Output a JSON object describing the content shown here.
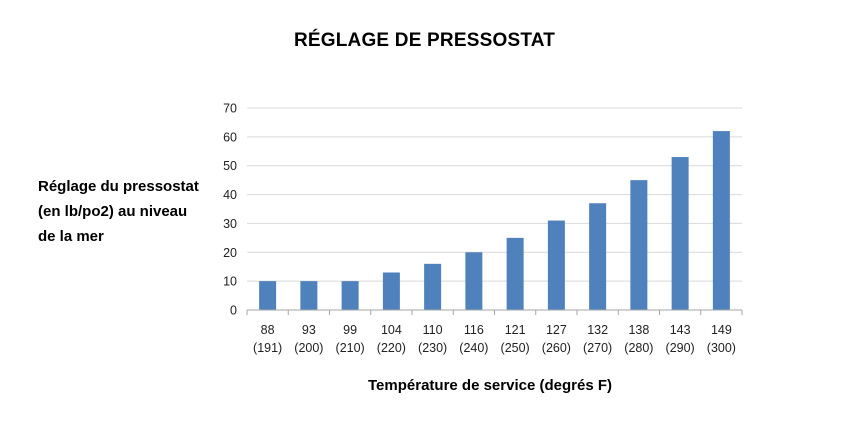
{
  "chart_data": {
    "type": "bar",
    "title": "RÉGLAGE DE PRESSOSTAT",
    "ylabel": [
      "Réglage du pressostat",
      "(en lb/po2) au niveau",
      "de la mer"
    ],
    "xlabel": "Température de service (degrés F)",
    "categories": [
      [
        "88",
        "(191)"
      ],
      [
        "93",
        "(200)"
      ],
      [
        "99",
        "(210)"
      ],
      [
        "104",
        "(220)"
      ],
      [
        "110",
        "(230)"
      ],
      [
        "116",
        "(240)"
      ],
      [
        "121",
        "(250)"
      ],
      [
        "127",
        "(260)"
      ],
      [
        "132",
        "(270)"
      ],
      [
        "138",
        "(280)"
      ],
      [
        "143",
        "(290)"
      ],
      [
        "149",
        "(300)"
      ]
    ],
    "values": [
      10,
      10,
      10,
      13,
      16,
      20,
      25,
      31,
      37,
      45,
      53,
      62
    ],
    "ylim": [
      0,
      70
    ],
    "yticks": [
      0,
      10,
      20,
      30,
      40,
      50,
      60,
      70
    ],
    "grid": true,
    "colors": {
      "bar": "#4f81bd",
      "grid": "#d9d9d9",
      "axis": "#a6a6a6"
    }
  }
}
